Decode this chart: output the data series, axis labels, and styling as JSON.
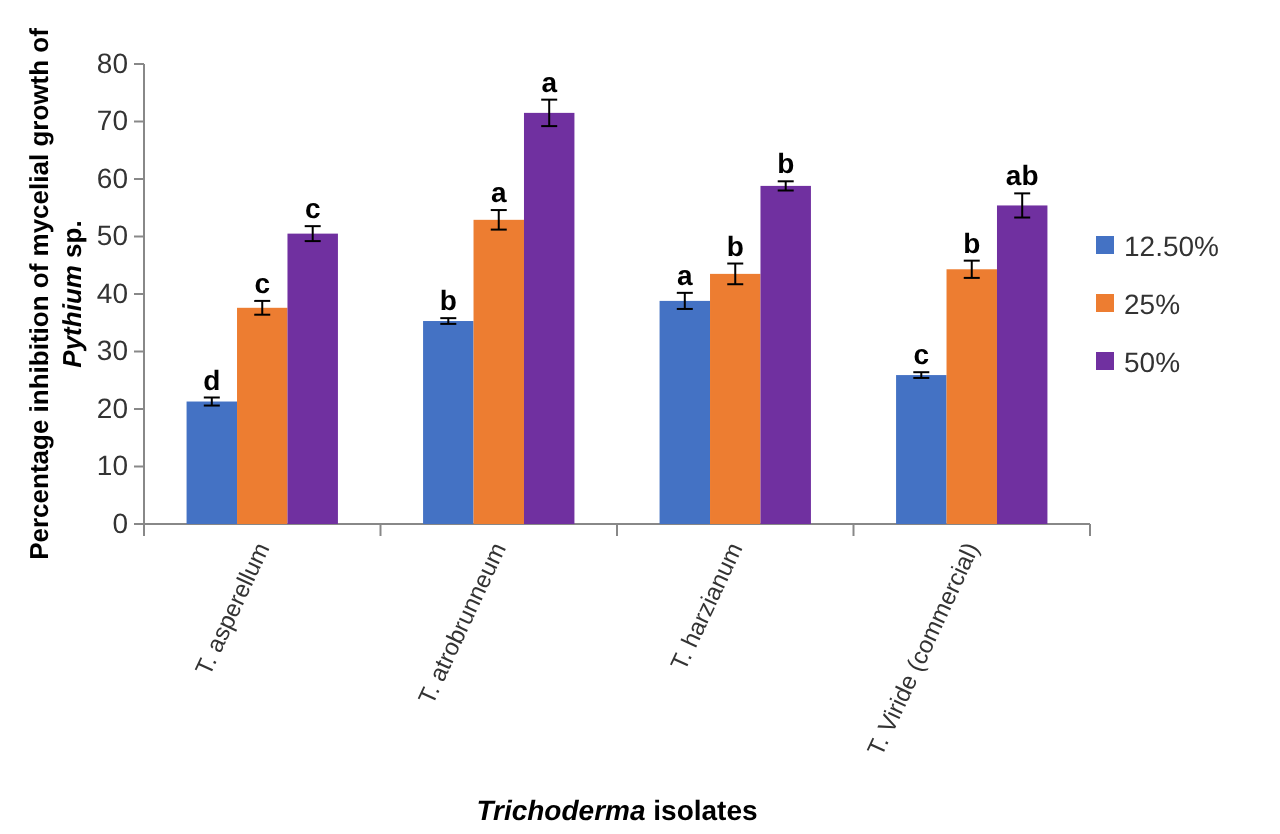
{
  "chart_data": {
    "type": "bar",
    "xlabel": "Trichoderma isolates",
    "ylabel": "Percentage inhibition of mycelial growth of Pythium sp.",
    "categories": [
      "T. asperellum",
      "T. atrobrunneum",
      "T. harzianum",
      "T. Viride (commercial)"
    ],
    "series": [
      {
        "name": "12.50%",
        "color": "#4472c4",
        "values": [
          21.3,
          35.3,
          38.8,
          25.9
        ],
        "value_labels": [
          "d",
          "b",
          "a",
          "c"
        ],
        "errors": [
          0.7,
          0.5,
          1.4,
          0.5
        ]
      },
      {
        "name": "25%",
        "color": "#ed7d31",
        "values": [
          37.6,
          52.9,
          43.5,
          44.3
        ],
        "value_labels": [
          "c",
          "a",
          "b",
          "b"
        ],
        "errors": [
          1.2,
          1.7,
          1.8,
          1.5
        ]
      },
      {
        "name": "50%",
        "color": "#7030a0",
        "values": [
          50.5,
          71.5,
          58.8,
          55.4
        ],
        "value_labels": [
          "c",
          "a",
          "b",
          "ab"
        ],
        "errors": [
          1.3,
          2.3,
          0.8,
          2.1
        ]
      }
    ],
    "ylim": [
      0,
      80
    ],
    "yticks": [
      0,
      10,
      20,
      30,
      40,
      50,
      60,
      70,
      80
    ],
    "grid": false,
    "legend": "right"
  }
}
